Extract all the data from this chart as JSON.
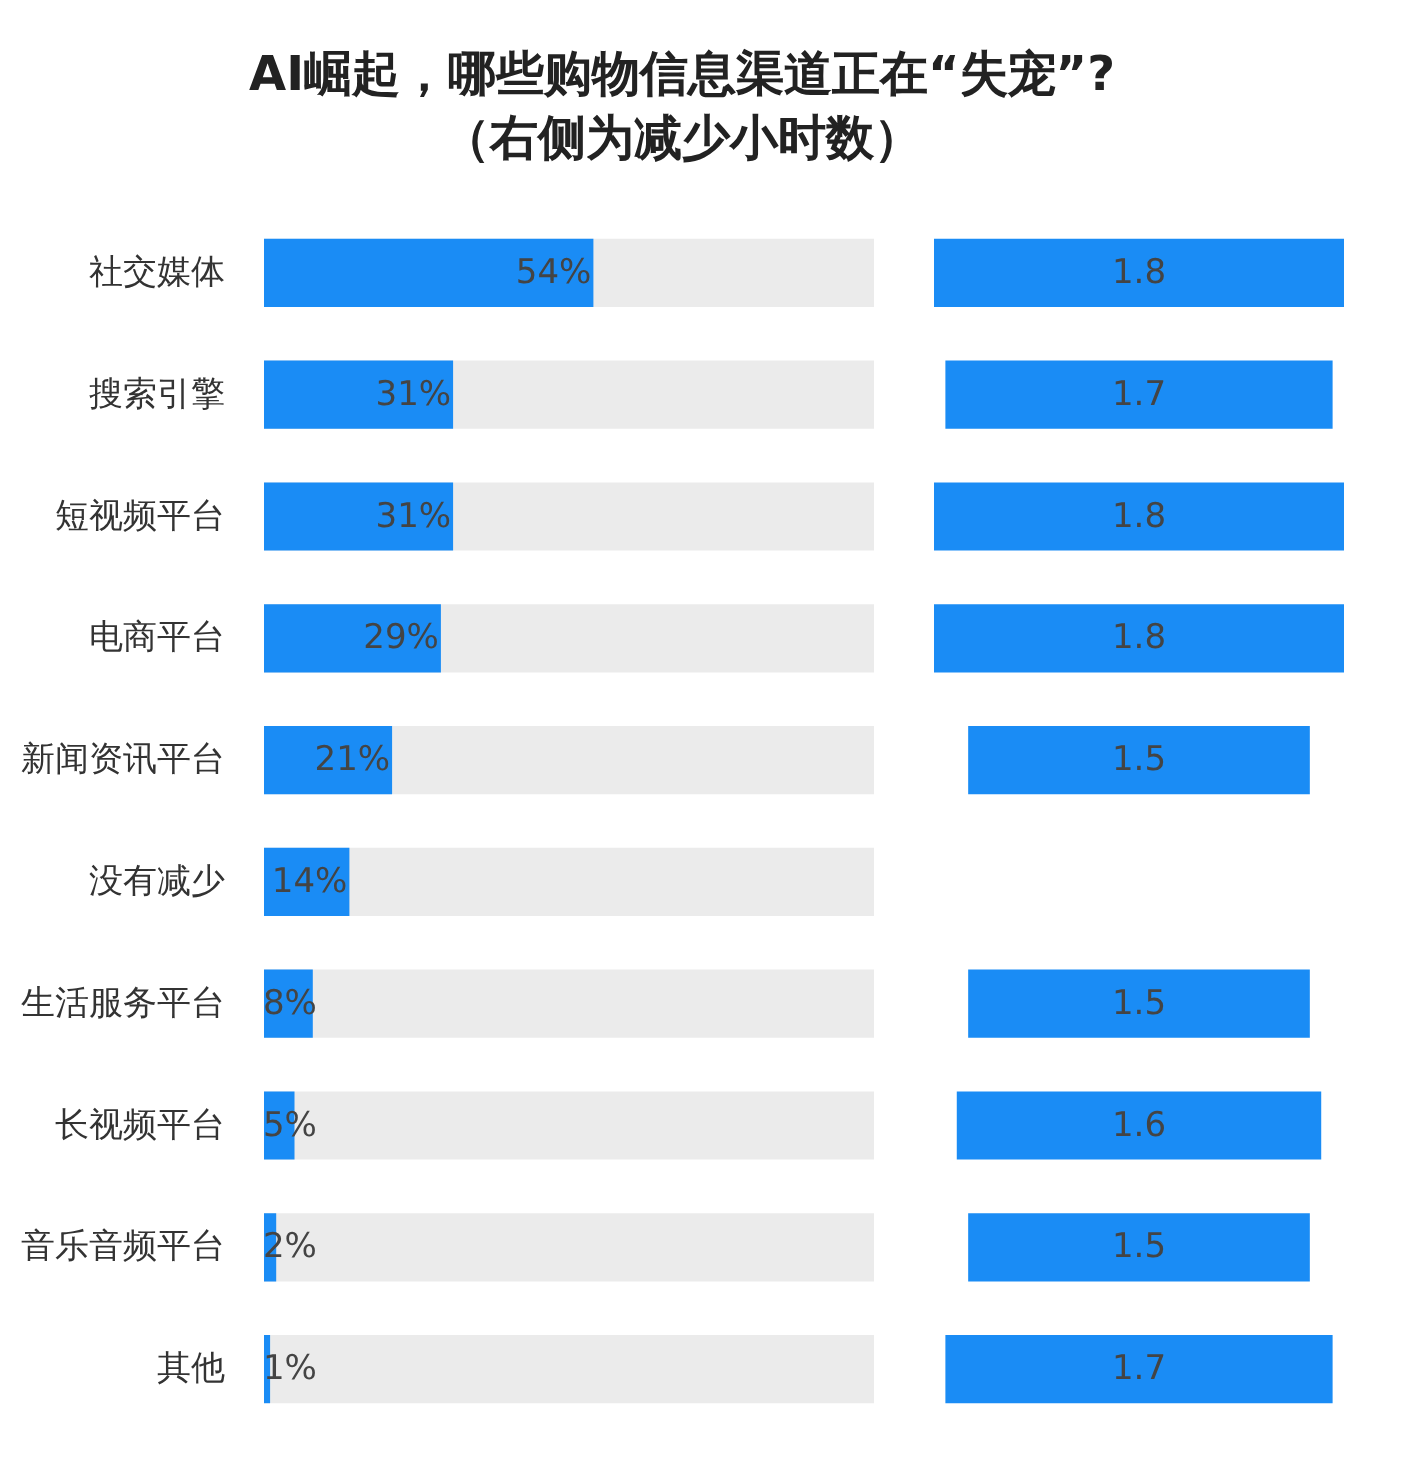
{
  "chart_data": [
    {
      "type": "bar",
      "orientation": "horizontal",
      "title": "AI崛起，哪些购物信息渠道正在“失宠”?",
      "subtitle": "（右侧为减少小时数）",
      "categories": [
        "社交媒体",
        "搜索引擎",
        "短视频平台",
        "电商平台",
        "新闻资讯平台",
        "没有减少",
        "生活服务平台",
        "长视频平台",
        "音乐音频平台",
        "其他"
      ],
      "values": [
        54,
        31,
        31,
        29,
        21,
        14,
        8,
        5,
        2,
        1
      ],
      "value_labels": [
        "54%",
        "31%",
        "31%",
        "29%",
        "21%",
        "14%",
        "8%",
        "5%",
        "2%",
        "1%"
      ],
      "color": "#1a8cf5",
      "xlim": [
        0,
        100
      ],
      "tick_labels": "y"
    },
    {
      "type": "other",
      "categories": [
        null,
        null,
        null,
        null,
        null,
        null,
        null,
        null,
        null,
        null
      ],
      "values": [
        1.8,
        1.7,
        1.8,
        1.8,
        1.5,
        null,
        1.5,
        1.6,
        1.5,
        1.7
      ],
      "color": "#1a8cf5",
      "data_labels": true
    }
  ]
}
